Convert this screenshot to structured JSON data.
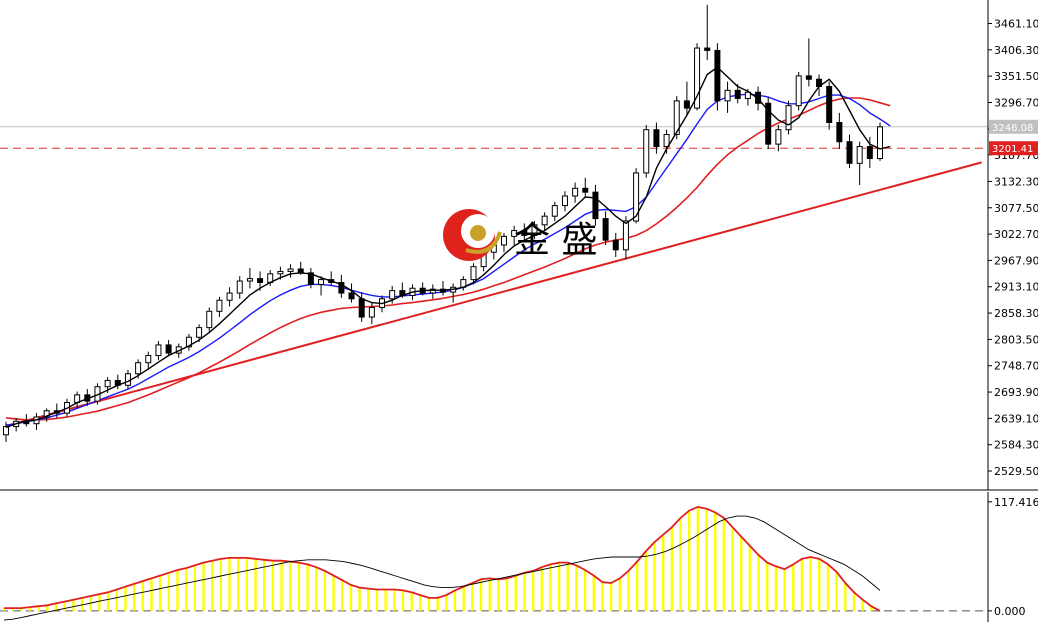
{
  "chart_data": [
    {
      "type": "candlestick",
      "y_ticks": [
        "3461.10",
        "3406.30",
        "3351.50",
        "3296.70",
        "3241.70",
        "3187.70",
        "3132.30",
        "3077.50",
        "3022.70",
        "2967.90",
        "2913.10",
        "2858.30",
        "2803.50",
        "2748.70",
        "2693.90",
        "2639.10",
        "2584.30",
        "2529.50"
      ],
      "ylim": [
        2490,
        3510
      ],
      "grid": false,
      "candles": [
        {
          "o": 2605,
          "h": 2632,
          "l": 2590,
          "c": 2622
        },
        {
          "o": 2622,
          "h": 2640,
          "l": 2612,
          "c": 2633
        },
        {
          "o": 2633,
          "h": 2648,
          "l": 2622,
          "c": 2628
        },
        {
          "o": 2628,
          "h": 2650,
          "l": 2615,
          "c": 2642
        },
        {
          "o": 2642,
          "h": 2660,
          "l": 2632,
          "c": 2655
        },
        {
          "o": 2655,
          "h": 2670,
          "l": 2640,
          "c": 2650
        },
        {
          "o": 2650,
          "h": 2680,
          "l": 2643,
          "c": 2672
        },
        {
          "o": 2672,
          "h": 2695,
          "l": 2660,
          "c": 2688
        },
        {
          "o": 2688,
          "h": 2700,
          "l": 2665,
          "c": 2675
        },
        {
          "o": 2675,
          "h": 2712,
          "l": 2668,
          "c": 2705
        },
        {
          "o": 2705,
          "h": 2725,
          "l": 2692,
          "c": 2718
        },
        {
          "o": 2718,
          "h": 2730,
          "l": 2700,
          "c": 2708
        },
        {
          "o": 2708,
          "h": 2740,
          "l": 2700,
          "c": 2732
        },
        {
          "o": 2732,
          "h": 2762,
          "l": 2722,
          "c": 2755
        },
        {
          "o": 2755,
          "h": 2778,
          "l": 2740,
          "c": 2770
        },
        {
          "o": 2770,
          "h": 2800,
          "l": 2760,
          "c": 2792
        },
        {
          "o": 2792,
          "h": 2802,
          "l": 2768,
          "c": 2775
        },
        {
          "o": 2775,
          "h": 2795,
          "l": 2765,
          "c": 2788
        },
        {
          "o": 2788,
          "h": 2815,
          "l": 2780,
          "c": 2808
        },
        {
          "o": 2808,
          "h": 2835,
          "l": 2798,
          "c": 2828
        },
        {
          "o": 2828,
          "h": 2870,
          "l": 2820,
          "c": 2862
        },
        {
          "o": 2862,
          "h": 2892,
          "l": 2850,
          "c": 2885
        },
        {
          "o": 2885,
          "h": 2912,
          "l": 2872,
          "c": 2900
        },
        {
          "o": 2900,
          "h": 2935,
          "l": 2888,
          "c": 2925
        },
        {
          "o": 2925,
          "h": 2952,
          "l": 2910,
          "c": 2930
        },
        {
          "o": 2930,
          "h": 2945,
          "l": 2905,
          "c": 2922
        },
        {
          "o": 2922,
          "h": 2948,
          "l": 2915,
          "c": 2940
        },
        {
          "o": 2940,
          "h": 2955,
          "l": 2928,
          "c": 2945
        },
        {
          "o": 2945,
          "h": 2960,
          "l": 2932,
          "c": 2950
        },
        {
          "o": 2950,
          "h": 2965,
          "l": 2938,
          "c": 2942
        },
        {
          "o": 2942,
          "h": 2952,
          "l": 2910,
          "c": 2918
        },
        {
          "o": 2918,
          "h": 2935,
          "l": 2895,
          "c": 2928
        },
        {
          "o": 2928,
          "h": 2945,
          "l": 2915,
          "c": 2922
        },
        {
          "o": 2922,
          "h": 2938,
          "l": 2890,
          "c": 2900
        },
        {
          "o": 2900,
          "h": 2920,
          "l": 2880,
          "c": 2888
        },
        {
          "o": 2888,
          "h": 2902,
          "l": 2840,
          "c": 2850
        },
        {
          "o": 2850,
          "h": 2880,
          "l": 2835,
          "c": 2870
        },
        {
          "o": 2870,
          "h": 2895,
          "l": 2860,
          "c": 2888
        },
        {
          "o": 2888,
          "h": 2915,
          "l": 2878,
          "c": 2905
        },
        {
          "o": 2905,
          "h": 2922,
          "l": 2890,
          "c": 2895
        },
        {
          "o": 2895,
          "h": 2918,
          "l": 2885,
          "c": 2910
        },
        {
          "o": 2910,
          "h": 2922,
          "l": 2895,
          "c": 2900
        },
        {
          "o": 2900,
          "h": 2918,
          "l": 2888,
          "c": 2908
        },
        {
          "o": 2908,
          "h": 2925,
          "l": 2895,
          "c": 2902
        },
        {
          "o": 2902,
          "h": 2920,
          "l": 2880,
          "c": 2912
        },
        {
          "o": 2912,
          "h": 2935,
          "l": 2905,
          "c": 2928
        },
        {
          "o": 2928,
          "h": 2962,
          "l": 2918,
          "c": 2955
        },
        {
          "o": 2955,
          "h": 2990,
          "l": 2945,
          "c": 2985
        },
        {
          "o": 2985,
          "h": 3010,
          "l": 2970,
          "c": 3000
        },
        {
          "o": 3000,
          "h": 3025,
          "l": 2985,
          "c": 3018
        },
        {
          "o": 3018,
          "h": 3040,
          "l": 3000,
          "c": 3030
        },
        {
          "o": 3030,
          "h": 3045,
          "l": 3010,
          "c": 3020
        },
        {
          "o": 3020,
          "h": 3050,
          "l": 3012,
          "c": 3042
        },
        {
          "o": 3042,
          "h": 3068,
          "l": 3030,
          "c": 3060
        },
        {
          "o": 3060,
          "h": 3090,
          "l": 3050,
          "c": 3082
        },
        {
          "o": 3082,
          "h": 3112,
          "l": 3070,
          "c": 3102
        },
        {
          "o": 3102,
          "h": 3130,
          "l": 3088,
          "c": 3118
        },
        {
          "o": 3118,
          "h": 3140,
          "l": 3100,
          "c": 3110
        },
        {
          "o": 3110,
          "h": 3125,
          "l": 3040,
          "c": 3055
        },
        {
          "o": 3055,
          "h": 3070,
          "l": 3000,
          "c": 3010
        },
        {
          "o": 3010,
          "h": 3025,
          "l": 2975,
          "c": 2990
        },
        {
          "o": 2990,
          "h": 3060,
          "l": 2970,
          "c": 3050
        },
        {
          "o": 3050,
          "h": 3160,
          "l": 3045,
          "c": 3150
        },
        {
          "o": 3150,
          "h": 3250,
          "l": 3140,
          "c": 3240
        },
        {
          "o": 3240,
          "h": 3255,
          "l": 3190,
          "c": 3205
        },
        {
          "o": 3205,
          "h": 3240,
          "l": 3190,
          "c": 3230
        },
        {
          "o": 3230,
          "h": 3310,
          "l": 3220,
          "c": 3300
        },
        {
          "o": 3300,
          "h": 3340,
          "l": 3270,
          "c": 3285
        },
        {
          "o": 3285,
          "h": 3420,
          "l": 3280,
          "c": 3410
        },
        {
          "o": 3410,
          "h": 3500,
          "l": 3385,
          "c": 3405
        },
        {
          "o": 3405,
          "h": 3420,
          "l": 3280,
          "c": 3300
        },
        {
          "o": 3300,
          "h": 3340,
          "l": 3275,
          "c": 3322
        },
        {
          "o": 3322,
          "h": 3335,
          "l": 3295,
          "c": 3305
        },
        {
          "o": 3305,
          "h": 3325,
          "l": 3290,
          "c": 3318
        },
        {
          "o": 3318,
          "h": 3330,
          "l": 3280,
          "c": 3295
        },
        {
          "o": 3295,
          "h": 3308,
          "l": 3200,
          "c": 3210
        },
        {
          "o": 3210,
          "h": 3250,
          "l": 3195,
          "c": 3240
        },
        {
          "o": 3240,
          "h": 3300,
          "l": 3230,
          "c": 3290
        },
        {
          "o": 3290,
          "h": 3360,
          "l": 3280,
          "c": 3352
        },
        {
          "o": 3352,
          "h": 3430,
          "l": 3330,
          "c": 3345
        },
        {
          "o": 3345,
          "h": 3355,
          "l": 3310,
          "c": 3330
        },
        {
          "o": 3330,
          "h": 3340,
          "l": 3240,
          "c": 3255
        },
        {
          "o": 3255,
          "h": 3275,
          "l": 3200,
          "c": 3215
        },
        {
          "o": 3215,
          "h": 3230,
          "l": 3160,
          "c": 3170
        },
        {
          "o": 3170,
          "h": 3215,
          "l": 3125,
          "c": 3205
        },
        {
          "o": 3205,
          "h": 3225,
          "l": 3160,
          "c": 3180
        },
        {
          "o": 3180,
          "h": 3255,
          "l": 3175,
          "c": 3246
        }
      ],
      "ma_black": [
        2620,
        2628,
        2634,
        2636,
        2644,
        2652,
        2660,
        2672,
        2680,
        2688,
        2698,
        2708,
        2716,
        2728,
        2742,
        2756,
        2770,
        2780,
        2790,
        2802,
        2818,
        2836,
        2856,
        2876,
        2896,
        2910,
        2922,
        2932,
        2940,
        2942,
        2940,
        2932,
        2925,
        2918,
        2905,
        2888,
        2880,
        2878,
        2885,
        2895,
        2902,
        2905,
        2906,
        2906,
        2908,
        2912,
        2922,
        2938,
        2958,
        2980,
        2998,
        3010,
        3020,
        3030,
        3045,
        3060,
        3080,
        3100,
        3098,
        3080,
        3060,
        3045,
        3060,
        3100,
        3160,
        3200,
        3235,
        3270,
        3310,
        3355,
        3370,
        3350,
        3330,
        3320,
        3305,
        3280,
        3260,
        3250,
        3265,
        3300,
        3330,
        3345,
        3320,
        3280,
        3240,
        3210,
        3200,
        3205
      ],
      "ma_blue": [
        2625,
        2628,
        2632,
        2636,
        2640,
        2646,
        2652,
        2660,
        2668,
        2676,
        2684,
        2692,
        2700,
        2710,
        2722,
        2734,
        2746,
        2756,
        2766,
        2778,
        2792,
        2806,
        2822,
        2838,
        2855,
        2870,
        2884,
        2896,
        2906,
        2914,
        2918,
        2918,
        2916,
        2912,
        2906,
        2900,
        2895,
        2892,
        2892,
        2894,
        2896,
        2898,
        2900,
        2902,
        2906,
        2912,
        2920,
        2930,
        2945,
        2960,
        2975,
        2990,
        3002,
        3012,
        3024,
        3036,
        3050,
        3064,
        3072,
        3074,
        3072,
        3070,
        3080,
        3100,
        3130,
        3160,
        3190,
        3220,
        3252,
        3282,
        3300,
        3308,
        3312,
        3314,
        3312,
        3308,
        3300,
        3294,
        3294,
        3298,
        3305,
        3312,
        3312,
        3305,
        3292,
        3275,
        3262,
        3248
      ],
      "ma_red": [
        2640,
        2638,
        2636,
        2636,
        2637,
        2639,
        2642,
        2646,
        2650,
        2654,
        2660,
        2666,
        2672,
        2680,
        2688,
        2697,
        2706,
        2715,
        2724,
        2734,
        2745,
        2756,
        2768,
        2780,
        2793,
        2805,
        2817,
        2828,
        2838,
        2847,
        2854,
        2860,
        2864,
        2868,
        2870,
        2871,
        2872,
        2873,
        2875,
        2878,
        2880,
        2883,
        2886,
        2889,
        2893,
        2897,
        2902,
        2908,
        2915,
        2922,
        2930,
        2938,
        2946,
        2954,
        2963,
        2972,
        2982,
        2992,
        3000,
        3006,
        3010,
        3014,
        3020,
        3030,
        3044,
        3060,
        3078,
        3098,
        3120,
        3145,
        3168,
        3188,
        3204,
        3218,
        3232,
        3244,
        3254,
        3262,
        3270,
        3280,
        3290,
        3298,
        3304,
        3306,
        3306,
        3302,
        3296,
        3290
      ],
      "trendline": [
        [
          0,
          2623
        ],
        [
          96,
          3172
        ]
      ],
      "horizontal_lines": {
        "dashed_red": 3201.41,
        "grey": 3246.08
      },
      "price_badges": {
        "red": "3201.41",
        "grey": "3246.08"
      },
      "watermark": {
        "text": "金 盛"
      }
    },
    {
      "type": "bar",
      "y_ticks": [
        "117.416",
        "0.000"
      ],
      "ylim": [
        -12,
        128
      ],
      "bar_color": "#ffff00",
      "histogram": [
        3,
        3,
        3,
        4,
        5,
        6,
        8,
        10,
        12,
        14,
        16,
        18,
        20,
        23,
        26,
        29,
        32,
        35,
        38,
        41,
        44,
        46,
        49,
        52,
        54,
        56,
        57,
        57,
        57,
        56,
        55,
        54,
        54,
        53,
        52,
        50,
        47,
        43,
        38,
        33,
        28,
        25,
        24,
        23,
        23,
        23,
        22,
        20,
        17,
        14,
        14,
        17,
        22,
        26,
        30,
        34,
        35,
        34,
        35,
        38,
        41,
        43,
        47,
        50,
        52,
        52,
        49,
        44,
        38,
        31,
        30,
        35,
        43,
        53,
        64,
        74,
        82,
        90,
        100,
        108,
        112,
        110,
        106,
        100,
        90,
        80,
        70,
        60,
        52,
        48,
        45,
        50,
        56,
        58,
        56,
        50,
        42,
        30,
        20,
        12,
        5,
        0
      ],
      "signal": [
        -10,
        -9,
        -7,
        -5,
        -3,
        -1,
        1,
        3,
        5,
        7,
        9,
        11,
        13,
        15,
        17,
        19,
        21,
        23,
        25,
        27,
        29,
        31,
        33,
        35,
        37,
        39,
        41,
        43,
        45,
        47,
        49,
        51,
        53,
        54,
        55,
        55,
        55,
        54,
        53,
        51,
        49,
        46,
        43,
        40,
        37,
        34,
        31,
        28,
        26,
        25,
        25,
        26,
        28,
        30,
        32,
        34,
        36,
        38,
        40,
        42,
        44,
        46,
        48,
        50,
        52,
        54,
        56,
        57,
        58,
        58,
        58,
        58,
        59,
        61,
        64,
        68,
        73,
        78,
        84,
        90,
        96,
        100,
        102,
        102,
        100,
        96,
        90,
        84,
        78,
        72,
        66,
        62,
        58,
        54,
        50,
        44,
        38,
        30,
        22
      ]
    }
  ]
}
